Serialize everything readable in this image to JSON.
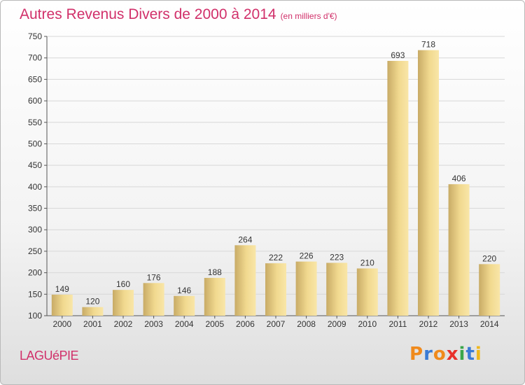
{
  "title": "Autres Revenus Divers de 2000 à 2014",
  "subtitle": "(en milliers d'€)",
  "place": "LAGUéPIE",
  "logo": {
    "letters": [
      "P",
      "r",
      "o",
      "x",
      "i",
      "t",
      "i"
    ],
    "colors": [
      "#f08a1c",
      "#3a7bd5",
      "#f08a1c",
      "#e8302c",
      "#3aa64a",
      "#3a7bd5",
      "#f0b81c"
    ]
  },
  "colors": {
    "title": "#d1306a",
    "bar_light": "#f8e2a0",
    "bar_dark": "#c8ab66"
  },
  "chart_data": {
    "type": "bar",
    "title": "Autres Revenus Divers de 2000 à 2014",
    "categories": [
      "2000",
      "2001",
      "2002",
      "2003",
      "2004",
      "2005",
      "2006",
      "2007",
      "2008",
      "2009",
      "2010",
      "2011",
      "2012",
      "2013",
      "2014"
    ],
    "values": [
      149,
      120,
      160,
      176,
      146,
      188,
      264,
      222,
      226,
      223,
      210,
      693,
      718,
      406,
      220
    ],
    "ylim": [
      100,
      750
    ],
    "yticks": [
      100,
      150,
      200,
      250,
      300,
      350,
      400,
      450,
      500,
      550,
      600,
      650,
      700,
      750
    ],
    "grid": true,
    "xlabel": "",
    "ylabel": ""
  }
}
